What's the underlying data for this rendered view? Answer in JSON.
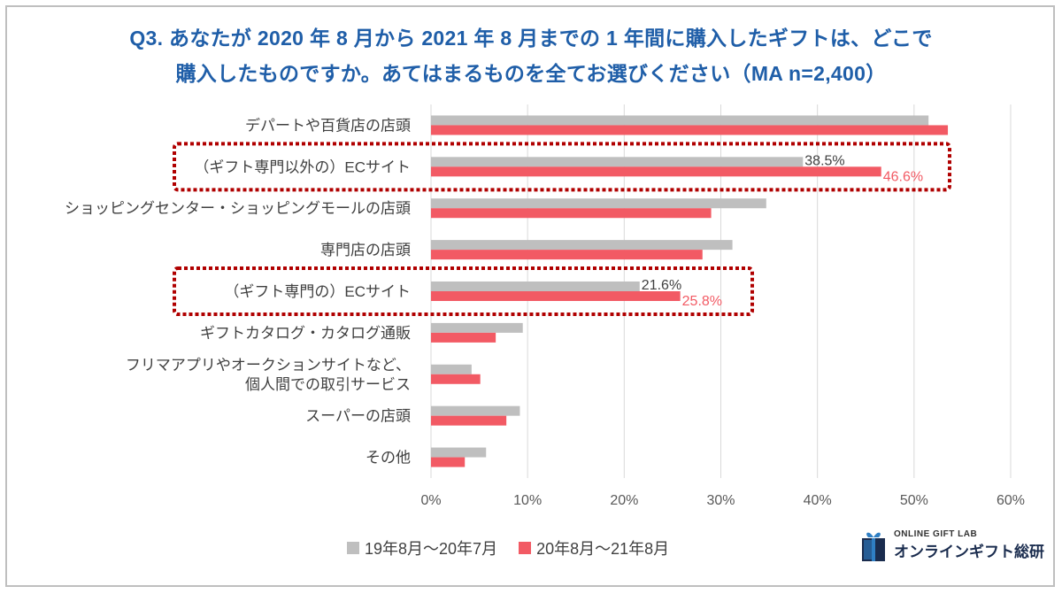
{
  "title": {
    "line1": "Q3. あなたが 2020 年 8 月から 2021 年 8 月までの 1 年間に購入したギフトは、どこで",
    "line2": "購入したものですか。あてはまるものを全てお選びください（MA n=2,400）"
  },
  "colors": {
    "series1": "#bfbfbf",
    "series2": "#f25a64",
    "title": "#1f5ea8",
    "highlight_box": "#b00000",
    "logo_accent": "#2f7fc4"
  },
  "chart_data": {
    "type": "bar",
    "orientation": "horizontal",
    "categories": [
      "デパートや百貨店の店頭",
      "（ギフト専門以外の）ECサイト",
      "ショッピングセンター・ショッピングモールの店頭",
      "専門店の店頭",
      "（ギフト専門の）ECサイト",
      "ギフトカタログ・カタログ通販",
      "フリマアプリやオークションサイトなど、\n個人間での取引サービス",
      "スーパーの店頭",
      "その他"
    ],
    "series": [
      {
        "name": "19年8月～20年7月",
        "values": [
          51.5,
          38.5,
          34.7,
          31.2,
          21.6,
          9.5,
          4.2,
          9.2,
          5.7
        ]
      },
      {
        "name": "20年8月～21年8月",
        "values": [
          53.5,
          46.6,
          29.0,
          28.1,
          25.8,
          6.7,
          5.1,
          7.8,
          3.5
        ]
      }
    ],
    "value_labels": {
      "1": [
        "38.5%",
        "46.6%"
      ],
      "4": [
        "21.6%",
        "25.8%"
      ]
    },
    "highlighted_categories": [
      1,
      4
    ],
    "xlim": [
      0,
      60
    ],
    "x_ticks": [
      "0%",
      "10%",
      "20%",
      "30%",
      "40%",
      "50%",
      "60%"
    ],
    "grid": "vertical",
    "legend_position": "bottom"
  },
  "logo": {
    "small_text": "ONLINE GIFT LAB",
    "big_text": "オンラインギフト総研",
    "icon": "gift-box-icon"
  }
}
